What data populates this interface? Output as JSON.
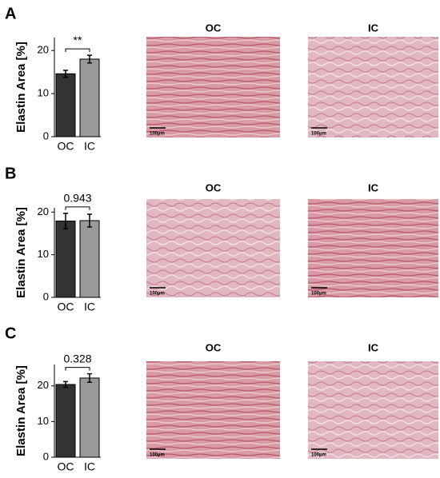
{
  "chart_data": [
    {
      "type": "bar",
      "ylabel": "Elastin Area [%]",
      "categories": [
        "OC",
        "IC"
      ],
      "values": [
        14.6,
        18.0
      ],
      "errors": [
        0.8,
        0.9
      ],
      "colors": [
        "#333333",
        "#999999"
      ],
      "ylim": [
        0,
        23
      ],
      "yticks": [
        10,
        20,
        0
      ],
      "annotation": "**"
    },
    {
      "type": "bar",
      "ylabel": "Elastin Area [%]",
      "categories": [
        "OC",
        "IC"
      ],
      "values": [
        17.9,
        18.0
      ],
      "errors": [
        1.8,
        1.5
      ],
      "colors": [
        "#333333",
        "#999999"
      ],
      "ylim": [
        0,
        21
      ],
      "yticks": [
        0,
        10,
        20
      ],
      "annotation": "0.943"
    },
    {
      "type": "bar",
      "ylabel": "Elastin Area [%]",
      "categories": [
        "OC",
        "IC"
      ],
      "values": [
        20.4,
        22.2
      ],
      "errors": [
        0.8,
        1.2
      ],
      "colors": [
        "#333333",
        "#999999"
      ],
      "ylim": [
        0,
        26
      ],
      "yticks": [
        0,
        10,
        20
      ],
      "annotation": "0.328"
    }
  ],
  "panels": [
    {
      "letter": "A",
      "images": [
        {
          "title": "OC",
          "scale": "100µm"
        },
        {
          "title": "IC",
          "scale": "100µm"
        }
      ]
    },
    {
      "letter": "B",
      "images": [
        {
          "title": "OC",
          "scale": "100µm"
        },
        {
          "title": "IC",
          "scale": "100µm"
        }
      ]
    },
    {
      "letter": "C",
      "images": [
        {
          "title": "OC",
          "scale": "100µm"
        },
        {
          "title": "IC",
          "scale": "100µm"
        }
      ]
    }
  ]
}
